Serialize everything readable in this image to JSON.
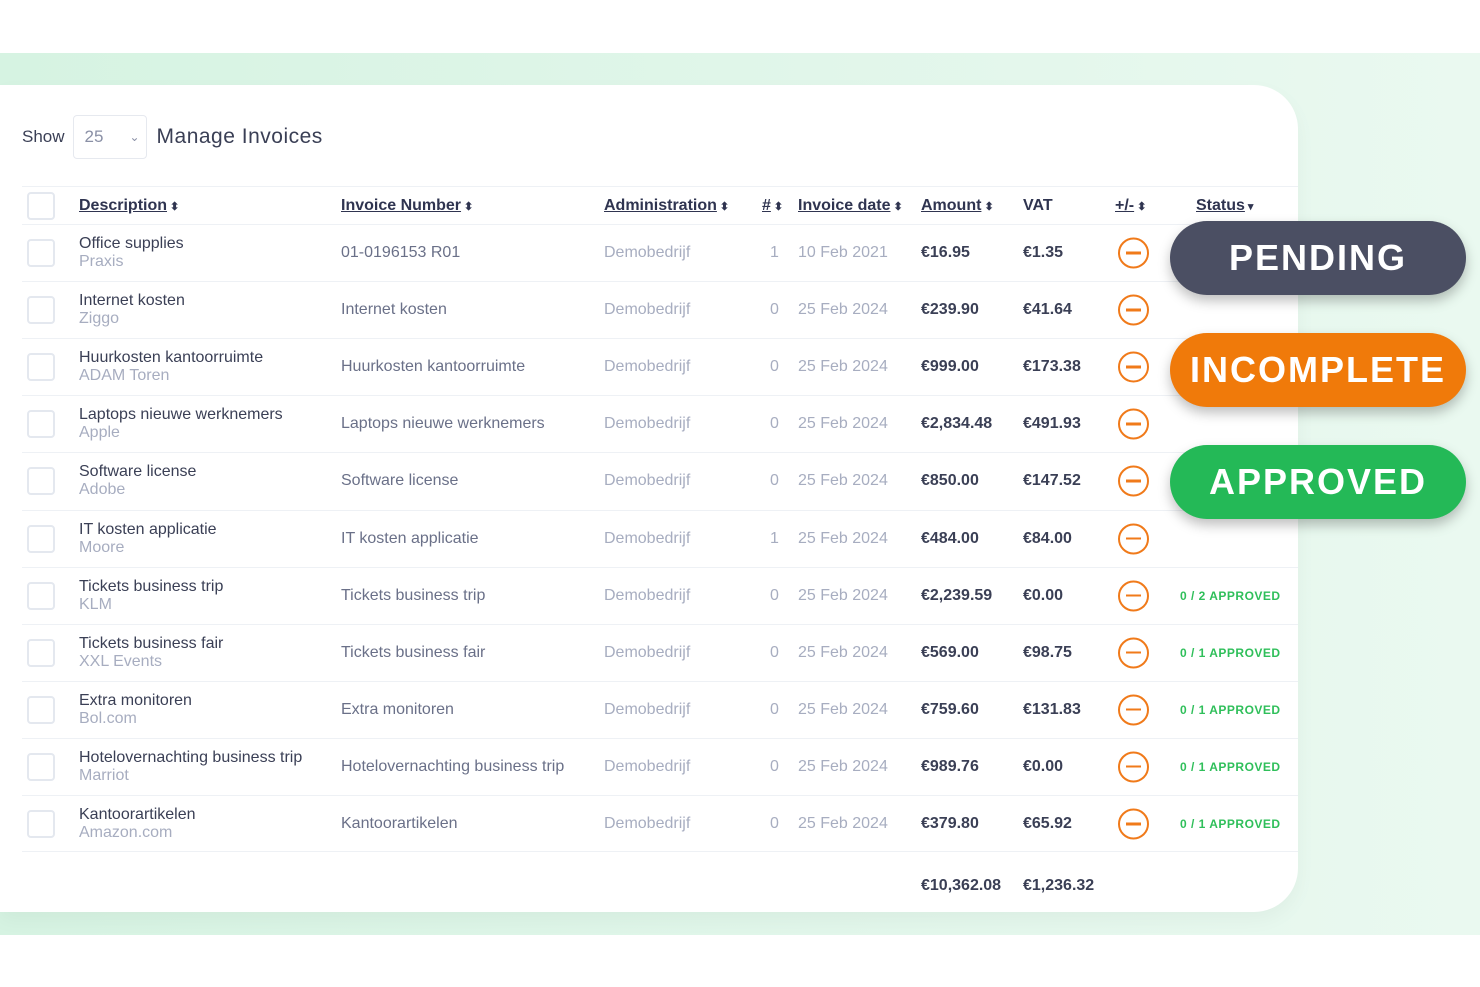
{
  "toolbar": {
    "show_label": "Show",
    "page_size": "25",
    "title": "Manage Invoices"
  },
  "columns": [
    "Description",
    "Invoice Number",
    "Administration",
    "#",
    "Invoice date",
    "Amount",
    "VAT",
    "+/-",
    "Status"
  ],
  "rows": [
    {
      "desc": "Office supplies",
      "vendor": "Praxis",
      "inv": "01-0196153 R01",
      "admin": "Demobedrijf",
      "n": "1",
      "date": "10 Feb 2021",
      "amount": "€16.95",
      "vat": "€1.35",
      "status": ""
    },
    {
      "desc": "Internet kosten",
      "vendor": "Ziggo",
      "inv": "Internet kosten",
      "admin": "Demobedrijf",
      "n": "0",
      "date": "25 Feb 2024",
      "amount": "€239.90",
      "vat": "€41.64",
      "status": ""
    },
    {
      "desc": "Huurkosten kantoorruimte",
      "vendor": "ADAM Toren",
      "inv": "Huurkosten kantoorruimte",
      "admin": "Demobedrijf",
      "n": "0",
      "date": "25 Feb 2024",
      "amount": "€999.00",
      "vat": "€173.38",
      "status": ""
    },
    {
      "desc": "Laptops nieuwe werknemers",
      "vendor": "Apple",
      "inv": "Laptops nieuwe werknemers",
      "admin": "Demobedrijf",
      "n": "0",
      "date": "25 Feb 2024",
      "amount": "€2,834.48",
      "vat": "€491.93",
      "status": ""
    },
    {
      "desc": "Software license",
      "vendor": "Adobe",
      "inv": "Software license",
      "admin": "Demobedrijf",
      "n": "0",
      "date": "25 Feb 2024",
      "amount": "€850.00",
      "vat": "€147.52",
      "status": ""
    },
    {
      "desc": "IT kosten applicatie",
      "vendor": "Moore",
      "inv": "IT kosten applicatie",
      "admin": "Demobedrijf",
      "n": "1",
      "date": "25 Feb 2024",
      "amount": "€484.00",
      "vat": "€84.00",
      "status": ""
    },
    {
      "desc": "Tickets business trip",
      "vendor": "KLM",
      "inv": "Tickets business trip",
      "admin": "Demobedrijf",
      "n": "0",
      "date": "25 Feb 2024",
      "amount": "€2,239.59",
      "vat": "€0.00",
      "status": "0 / 2 APPROVED"
    },
    {
      "desc": "Tickets business fair",
      "vendor": "XXL Events",
      "inv": "Tickets business fair",
      "admin": "Demobedrijf",
      "n": "0",
      "date": "25 Feb 2024",
      "amount": "€569.00",
      "vat": "€98.75",
      "status": "0 / 1 APPROVED"
    },
    {
      "desc": "Extra monitoren",
      "vendor": "Bol.com",
      "inv": "Extra monitoren",
      "admin": "Demobedrijf",
      "n": "0",
      "date": "25 Feb 2024",
      "amount": "€759.60",
      "vat": "€131.83",
      "status": "0 / 1 APPROVED"
    },
    {
      "desc": "Hotelovernachting business trip",
      "vendor": "Marriot",
      "inv": "Hotelovernachting business trip",
      "admin": "Demobedrijf",
      "n": "0",
      "date": "25 Feb 2024",
      "amount": "€989.76",
      "vat": "€0.00",
      "status": "0 / 1 APPROVED"
    },
    {
      "desc": "Kantoorartikelen",
      "vendor": "Amazon.com",
      "inv": "Kantoorartikelen",
      "admin": "Demobedrijf",
      "n": "0",
      "date": "25 Feb 2024",
      "amount": "€379.80",
      "vat": "€65.92",
      "status": "0 / 1 APPROVED"
    }
  ],
  "totals": {
    "amount": "€10,362.08",
    "vat": "€1,236.32"
  },
  "badges": [
    {
      "label": "PENDING",
      "color": "#4b4f63"
    },
    {
      "label": "INCOMPLETE",
      "color": "#f07a0a"
    },
    {
      "label": "APPROVED",
      "color": "#24b957"
    }
  ],
  "colors": {
    "accent_orange": "#f07a1a",
    "approved_green": "#2fbf5a"
  }
}
